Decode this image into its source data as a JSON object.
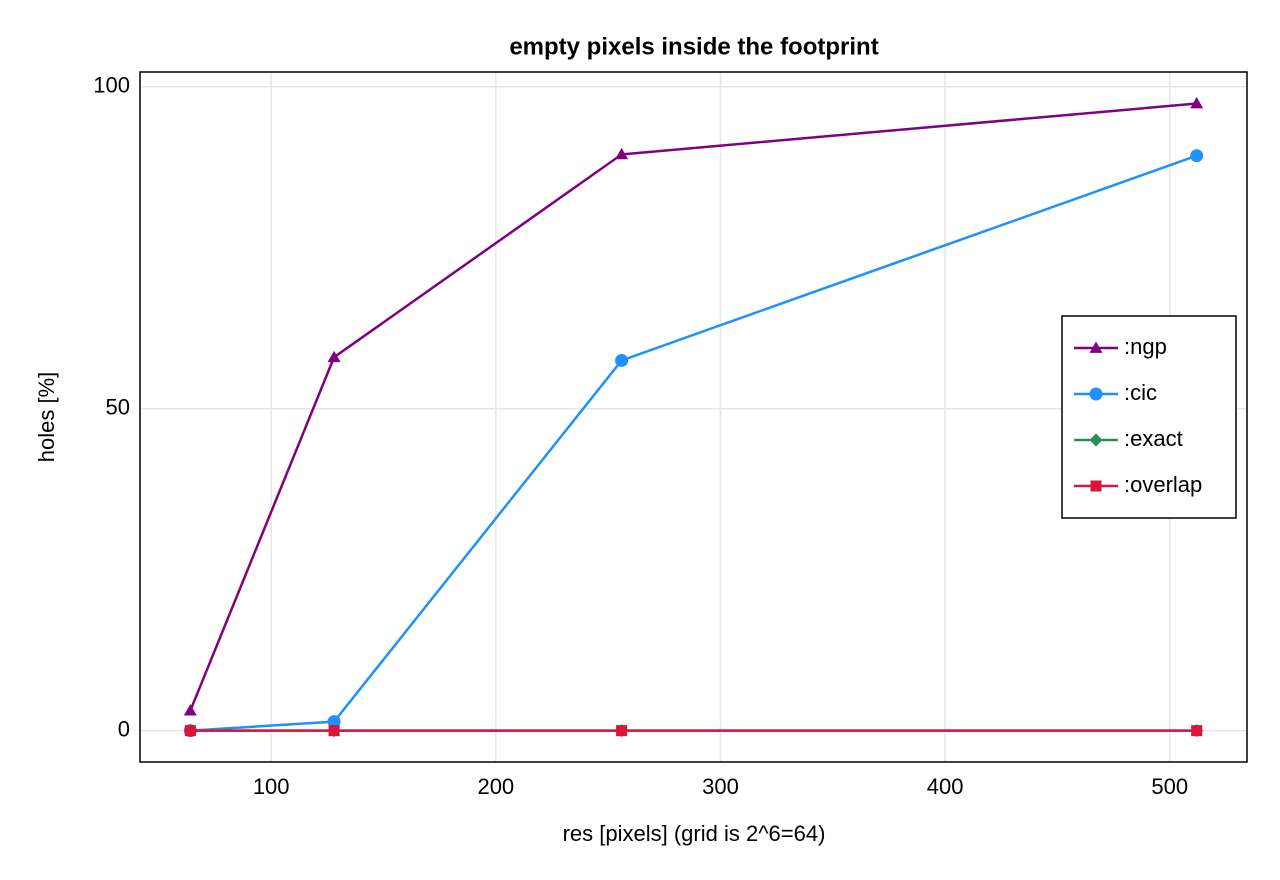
{
  "chart_data": {
    "type": "line",
    "title": "empty pixels inside the footprint",
    "xlabel": "res [pixels] (grid is 2^6=64)",
    "ylabel": "holes [%]",
    "x": [
      64,
      128,
      256,
      512
    ],
    "series": [
      {
        "name": ":ngp",
        "color": "#800080",
        "marker": "triangle",
        "values": [
          3.1,
          58.0,
          89.5,
          97.4
        ]
      },
      {
        "name": ":cic",
        "color": "#1e90ff",
        "marker": "circle",
        "values": [
          0,
          1.4,
          57.5,
          89.3
        ]
      },
      {
        "name": ":exact",
        "color": "#2e8b57",
        "marker": "diamond",
        "values": [
          0,
          0,
          0,
          0
        ]
      },
      {
        "name": ":overlap",
        "color": "#dc143c",
        "marker": "square",
        "values": [
          0,
          0,
          0,
          0
        ]
      }
    ],
    "xlim": [
      41.6,
      534.4
    ],
    "xticks": [
      100,
      200,
      300,
      400,
      500
    ],
    "ylim": [
      -4.87,
      102.3
    ],
    "yticks": [
      0,
      50,
      100
    ],
    "grid": true,
    "legend": "right"
  }
}
